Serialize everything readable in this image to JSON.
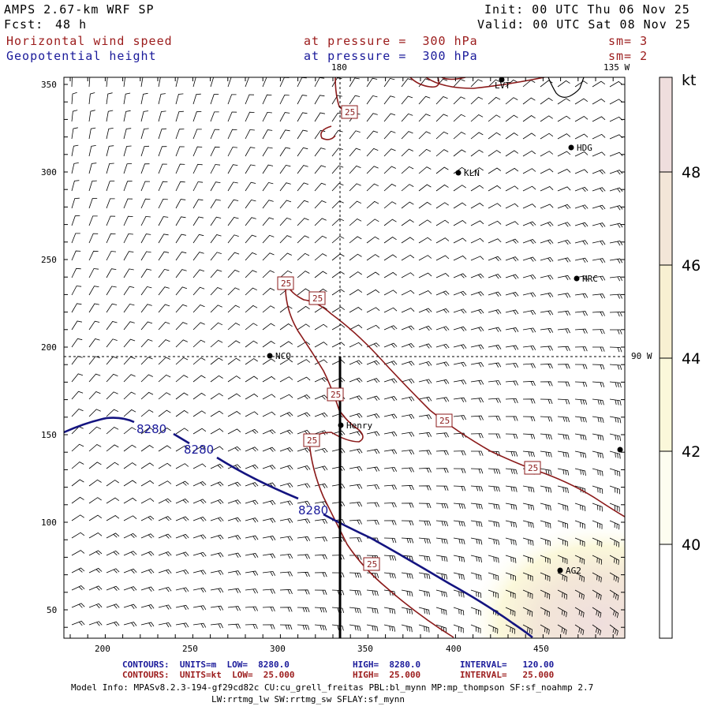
{
  "header": {
    "model": "AMPS 2.67-km WRF SP",
    "fcst_label": "Fcst:",
    "fcst_value": "48 h",
    "init": "Init: 00 UTC Thu 06 Nov 25",
    "valid": "Valid: 00 UTC Sat 08 Nov 25",
    "field1": "Horizontal wind speed",
    "field1_level": "at pressure =  300 hPa",
    "field1_sm": "sm= 3",
    "field2": "Geopotential height",
    "field2_level": "at pressure =  300 hPa",
    "field2_sm": "sm= 2"
  },
  "map": {
    "x_ticks": [
      "200",
      "250",
      "300",
      "350",
      "400",
      "450"
    ],
    "y_ticks": [
      "350",
      "300",
      "250",
      "200",
      "150",
      "100",
      "50"
    ],
    "lon_labels": {
      "top_180": "180",
      "top_135": "135 W",
      "right_90": "90 W"
    },
    "stations": [
      {
        "id": "LVT",
        "label": "LVT"
      },
      {
        "id": "HDG",
        "label": "HDG"
      },
      {
        "id": "KLN",
        "label": "KLN"
      },
      {
        "id": "HRC",
        "label": "HRC"
      },
      {
        "id": "NCO",
        "label": "NCO"
      },
      {
        "id": "Henry",
        "label": "Henry"
      },
      {
        "id": "AG2",
        "label": "AG2"
      }
    ],
    "wind_contour_label": "25",
    "height_contour_label": "8280"
  },
  "colorbar": {
    "unit": "kt",
    "ticks": [
      "48",
      "46",
      "44",
      "42",
      "40"
    ],
    "colors": [
      "#fdfdf8",
      "#fbf8da",
      "#f8f0d2",
      "#f3e6d8",
      "#efdedd"
    ]
  },
  "footer": {
    "line1_label": "CONTOURS:  UNITS=m  LOW=  8280.0",
    "line1_high": "HIGH=  8280.0",
    "line1_interval": "INTERVAL=   120.00",
    "line2_label": "CONTOURS:  UNITS=kt  LOW=  25.000",
    "line2_high": "HIGH=  25.000",
    "line2_interval": "INTERVAL=   25.000",
    "model_info": "Model Info: MPASv8.2.3-194-gf29cd82c CU:cu_grell_freitas PBL:bl_mynn MP:mp_thompson SF:sf_noahmp 2.7",
    "model_info2": "LW:rrtmg_lw SW:rrtmg_sw SFLAY:sf_mynn"
  }
}
